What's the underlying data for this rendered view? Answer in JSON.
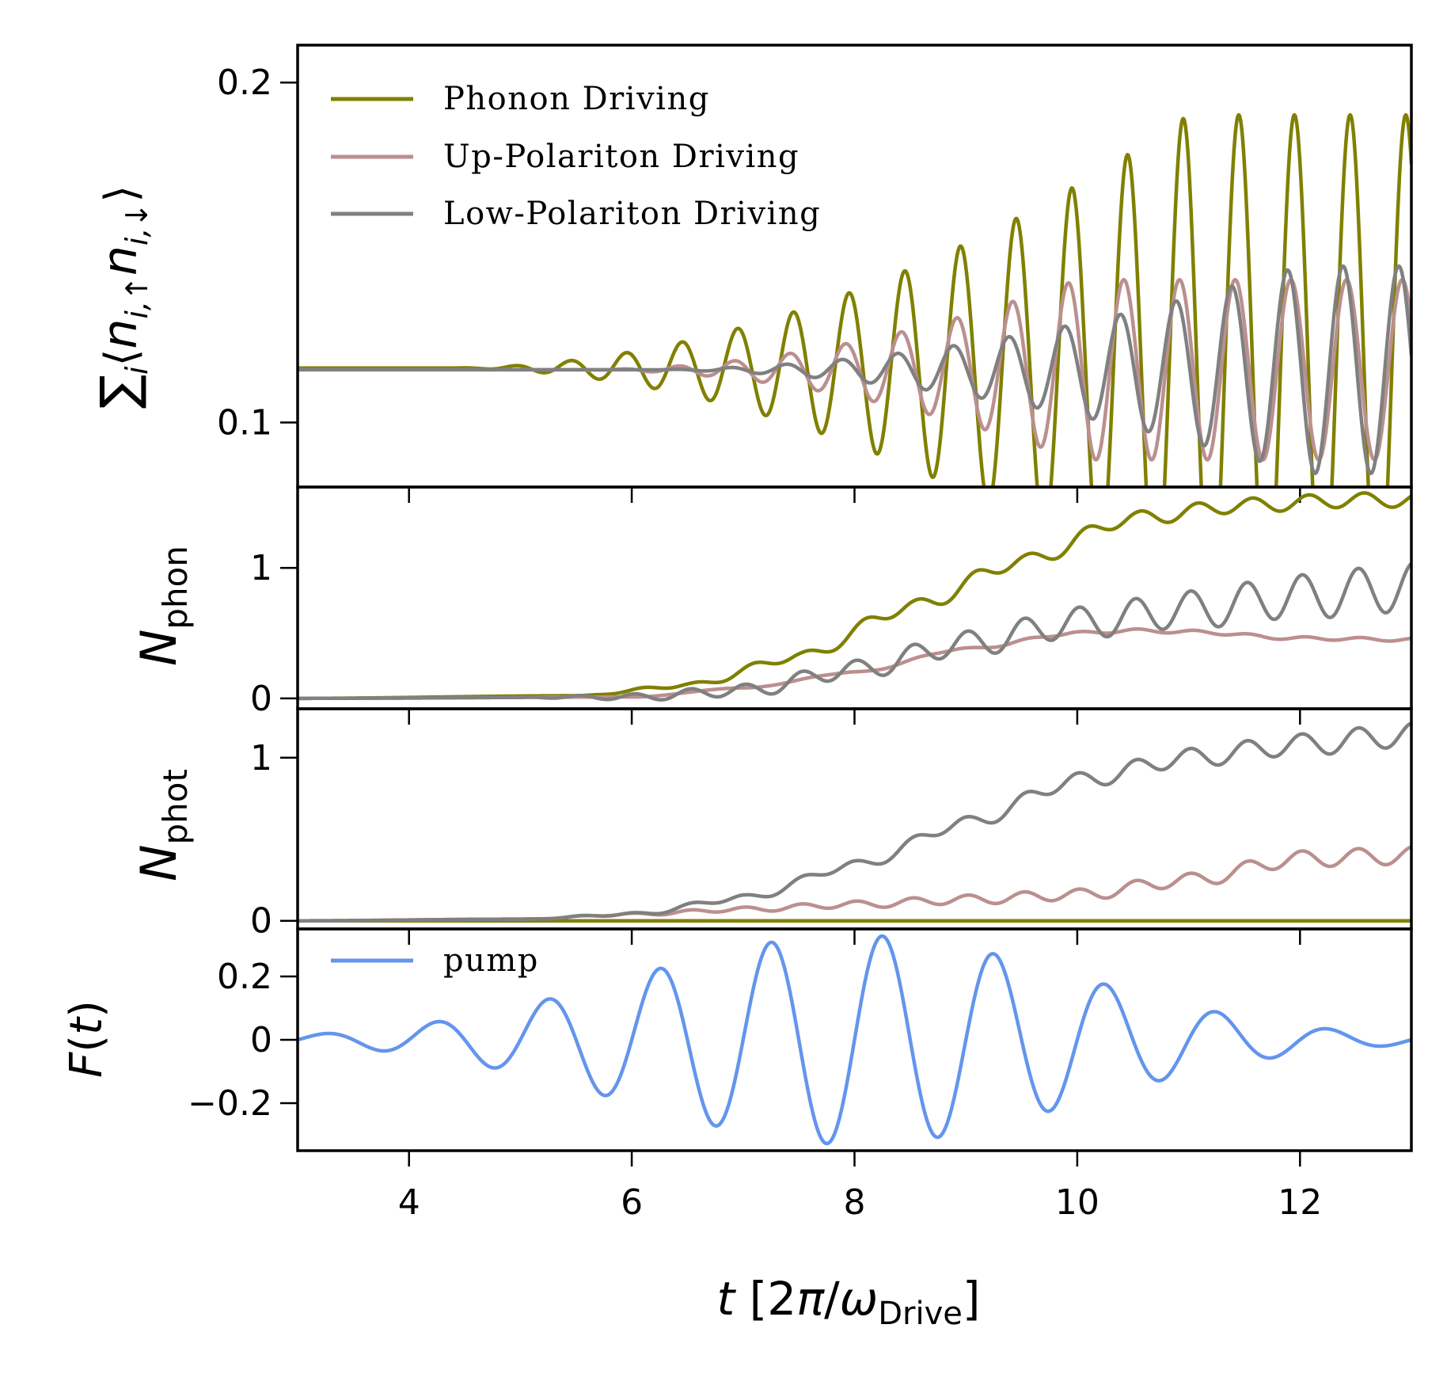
{
  "chart_data": {
    "type": "line",
    "colors": {
      "phonon": "#808000",
      "up": "#bc8f8f",
      "low": "#808080",
      "pump": "#6495ed"
    },
    "legend": {
      "phonon": "Phonon Driving",
      "up": "Up-Polariton Driving",
      "low": "Low-Polariton Driving",
      "pump": "pump"
    },
    "xlim": [
      3,
      13
    ],
    "xticks": [
      "4",
      "6",
      "8",
      "10",
      "12"
    ],
    "xtick_values": [
      4,
      6,
      8,
      10,
      12
    ],
    "xlabel": "t [2π/ω_Drive]",
    "panels": [
      {
        "id": "double_occupancy",
        "ylabel": "∑_i ⟨n_{i,↑} n_{i,↓}⟩",
        "ylim": [
          0.081,
          0.211
        ],
        "yticks": [
          "0.1",
          "0.2"
        ],
        "ytick_values": [
          0.1,
          0.2
        ],
        "series": [
          {
            "key": "phonon",
            "model": "oscillation",
            "base": 0.116,
            "amp_max": 0.0745,
            "t_on": 4.3,
            "t_full": 11.0,
            "period": 0.5,
            "phase": 2.2
          },
          {
            "key": "up",
            "model": "oscillation",
            "base": 0.1155,
            "amp_max": 0.0265,
            "t_on": 5.5,
            "t_full": 10.0,
            "period": 0.5,
            "phase": 2.6
          },
          {
            "key": "low",
            "model": "oscillation",
            "base": 0.1155,
            "amp_max": 0.0305,
            "t_on": 6.0,
            "t_full": 12.0,
            "period": 0.5,
            "phase": 3.0
          }
        ]
      },
      {
        "id": "phonon_number",
        "ylabel": "N_phon",
        "ylim": [
          -0.08,
          1.62
        ],
        "yticks": [
          "0",
          "1"
        ],
        "ytick_values": [
          0,
          1
        ],
        "series": [
          {
            "key": "phonon",
            "model": "staircase",
            "points": [
              [
                3,
                0
              ],
              [
                5.5,
                0.02
              ],
              [
                6.5,
                0.1
              ],
              [
                7.5,
                0.32
              ],
              [
                8.5,
                0.7
              ],
              [
                9.5,
                1.05
              ],
              [
                10.5,
                1.38
              ],
              [
                11.5,
                1.48
              ],
              [
                12.5,
                1.52
              ],
              [
                13,
                1.52
              ]
            ],
            "osc_amp": 0.055
          },
          {
            "key": "up",
            "model": "smooth",
            "points": [
              [
                3,
                0
              ],
              [
                6,
                0.01
              ],
              [
                7,
                0.08
              ],
              [
                8,
                0.2
              ],
              [
                9,
                0.38
              ],
              [
                10,
                0.5
              ],
              [
                10.5,
                0.52
              ],
              [
                11,
                0.51
              ],
              [
                12,
                0.46
              ],
              [
                13,
                0.45
              ]
            ],
            "osc_amp": 0.012
          },
          {
            "key": "low",
            "model": "oscillating_growth",
            "points": [
              [
                3,
                0
              ],
              [
                6,
                0.01
              ],
              [
                7,
                0.06
              ],
              [
                8,
                0.22
              ],
              [
                9,
                0.42
              ],
              [
                10,
                0.58
              ],
              [
                11,
                0.68
              ],
              [
                12,
                0.78
              ],
              [
                13,
                0.85
              ]
            ],
            "osc_amp_end": 0.19
          }
        ]
      },
      {
        "id": "photon_number",
        "ylabel": "N_phot",
        "ylim": [
          -0.05,
          1.3
        ],
        "yticks": [
          "0",
          "1"
        ],
        "ytick_values": [
          0,
          1
        ],
        "series": [
          {
            "key": "phonon",
            "model": "flat",
            "value": 0
          },
          {
            "key": "up",
            "model": "oscillating_growth",
            "points": [
              [
                3,
                0
              ],
              [
                5,
                0.01
              ],
              [
                6,
                0.04
              ],
              [
                7,
                0.07
              ],
              [
                8,
                0.1
              ],
              [
                9,
                0.13
              ],
              [
                10,
                0.16
              ],
              [
                11,
                0.25
              ],
              [
                12,
                0.38
              ],
              [
                13,
                0.4
              ]
            ],
            "osc_amp_end": 0.055
          },
          {
            "key": "low",
            "model": "oscillating_growth",
            "points": [
              [
                3,
                0
              ],
              [
                5,
                0.01
              ],
              [
                6,
                0.04
              ],
              [
                7,
                0.14
              ],
              [
                8,
                0.34
              ],
              [
                9,
                0.6
              ],
              [
                10,
                0.86
              ],
              [
                11,
                1.0
              ],
              [
                12,
                1.08
              ],
              [
                13,
                1.14
              ]
            ],
            "osc_amp_end": 0.075
          }
        ]
      },
      {
        "id": "pump",
        "ylabel": "F(t)",
        "ylim": [
          -0.35,
          0.35
        ],
        "yticks": [
          "0.2",
          "0",
          "−0.2"
        ],
        "ytick_values": [
          0.2,
          0,
          -0.2
        ],
        "series": [
          {
            "key": "pump",
            "model": "gaussian_pulse",
            "amp": 0.33,
            "center": 8.0,
            "sigma": 2.0,
            "period": 1.0
          }
        ]
      }
    ]
  }
}
